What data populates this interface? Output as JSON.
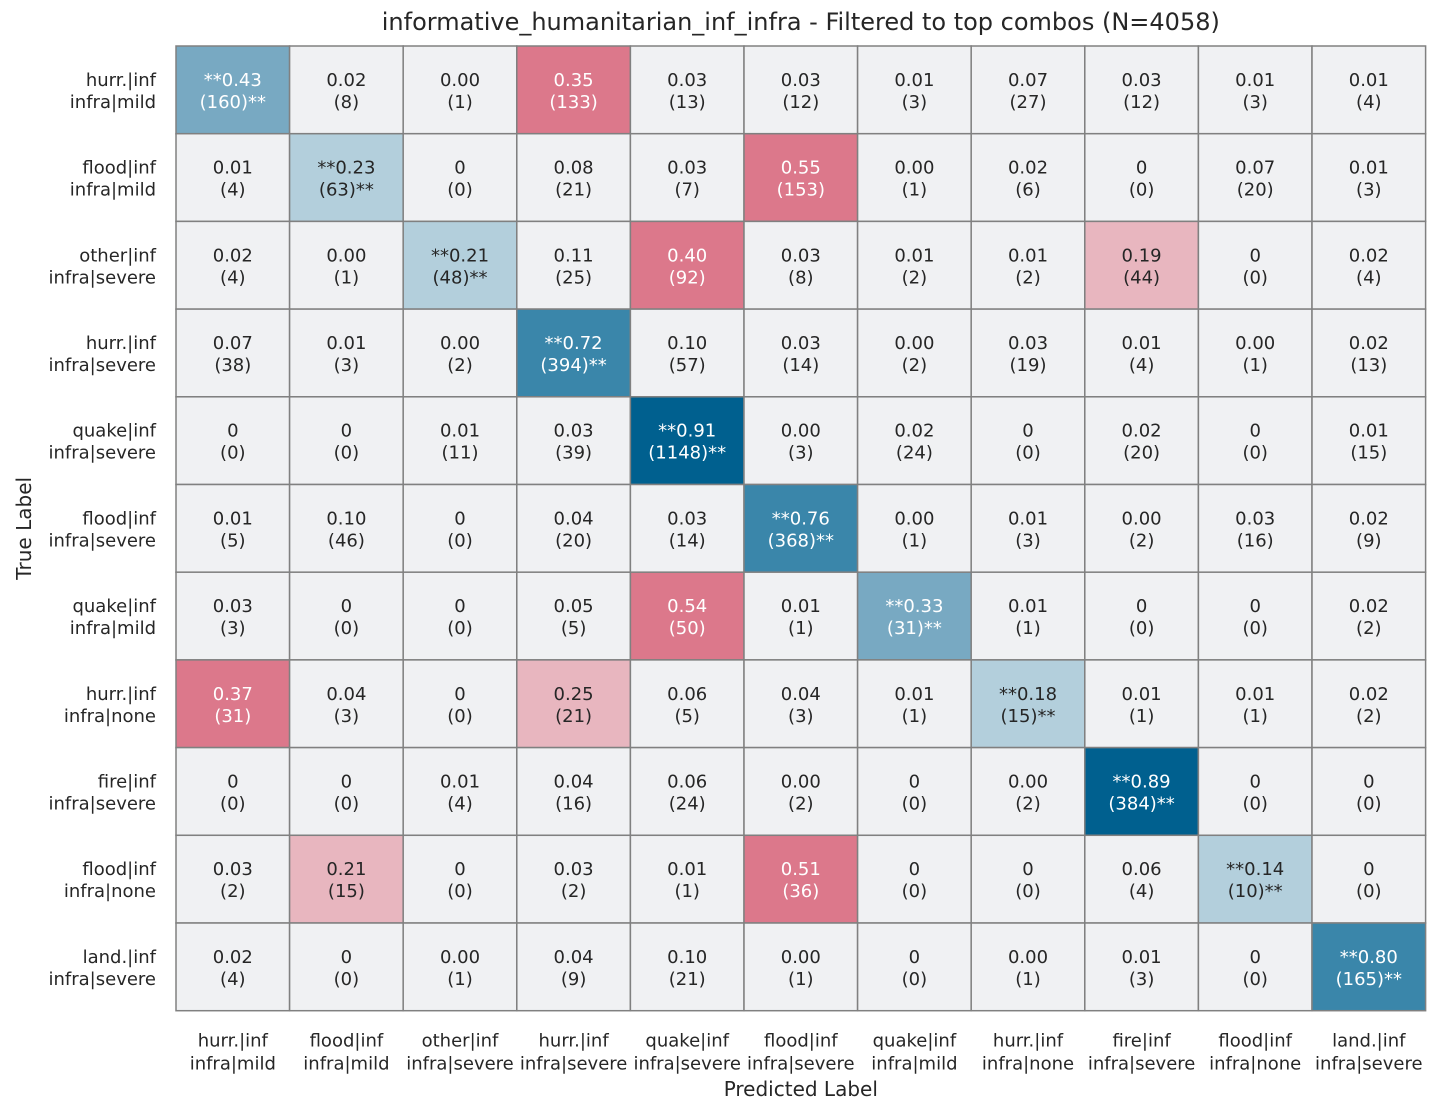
{
  "chart_data": {
    "type": "heatmap",
    "title": "informative_humanitarian_inf_infra - Filtered to top combos (N=4058)",
    "xlabel": "Predicted Label",
    "ylabel": "True Label",
    "row_labels": [
      [
        "hurr.|inf",
        "infra|mild"
      ],
      [
        "flood|inf",
        "infra|mild"
      ],
      [
        "other|inf",
        "infra|severe"
      ],
      [
        "hurr.|inf",
        "infra|severe"
      ],
      [
        "quake|inf",
        "infra|severe"
      ],
      [
        "flood|inf",
        "infra|severe"
      ],
      [
        "quake|inf",
        "infra|mild"
      ],
      [
        "hurr.|inf",
        "infra|none"
      ],
      [
        "fire|inf",
        "infra|severe"
      ],
      [
        "flood|inf",
        "infra|none"
      ],
      [
        "land.|inf",
        "infra|severe"
      ]
    ],
    "col_labels": [
      [
        "hurr.|inf",
        "infra|mild"
      ],
      [
        "flood|inf",
        "infra|mild"
      ],
      [
        "other|inf",
        "infra|severe"
      ],
      [
        "hurr.|inf",
        "infra|severe"
      ],
      [
        "quake|inf",
        "infra|severe"
      ],
      [
        "flood|inf",
        "infra|severe"
      ],
      [
        "quake|inf",
        "infra|mild"
      ],
      [
        "hurr.|inf",
        "infra|none"
      ],
      [
        "fire|inf",
        "infra|severe"
      ],
      [
        "flood|inf",
        "infra|none"
      ],
      [
        "land.|inf",
        "infra|severe"
      ]
    ],
    "cells": [
      [
        [
          "**0.43",
          "(160)**"
        ],
        [
          "0.02",
          "(8)"
        ],
        [
          "0.00",
          "(1)"
        ],
        [
          "0.35",
          "(133)"
        ],
        [
          "0.03",
          "(13)"
        ],
        [
          "0.03",
          "(12)"
        ],
        [
          "0.01",
          "(3)"
        ],
        [
          "0.07",
          "(27)"
        ],
        [
          "0.03",
          "(12)"
        ],
        [
          "0.01",
          "(3)"
        ],
        [
          "0.01",
          "(4)"
        ]
      ],
      [
        [
          "0.01",
          "(4)"
        ],
        [
          "**0.23",
          "(63)**"
        ],
        [
          "0",
          "(0)"
        ],
        [
          "0.08",
          "(21)"
        ],
        [
          "0.03",
          "(7)"
        ],
        [
          "0.55",
          "(153)"
        ],
        [
          "0.00",
          "(1)"
        ],
        [
          "0.02",
          "(6)"
        ],
        [
          "0",
          "(0)"
        ],
        [
          "0.07",
          "(20)"
        ],
        [
          "0.01",
          "(3)"
        ]
      ],
      [
        [
          "0.02",
          "(4)"
        ],
        [
          "0.00",
          "(1)"
        ],
        [
          "**0.21",
          "(48)**"
        ],
        [
          "0.11",
          "(25)"
        ],
        [
          "0.40",
          "(92)"
        ],
        [
          "0.03",
          "(8)"
        ],
        [
          "0.01",
          "(2)"
        ],
        [
          "0.01",
          "(2)"
        ],
        [
          "0.19",
          "(44)"
        ],
        [
          "0",
          "(0)"
        ],
        [
          "0.02",
          "(4)"
        ]
      ],
      [
        [
          "0.07",
          "(38)"
        ],
        [
          "0.01",
          "(3)"
        ],
        [
          "0.00",
          "(2)"
        ],
        [
          "**0.72",
          "(394)**"
        ],
        [
          "0.10",
          "(57)"
        ],
        [
          "0.03",
          "(14)"
        ],
        [
          "0.00",
          "(2)"
        ],
        [
          "0.03",
          "(19)"
        ],
        [
          "0.01",
          "(4)"
        ],
        [
          "0.00",
          "(1)"
        ],
        [
          "0.02",
          "(13)"
        ]
      ],
      [
        [
          "0",
          "(0)"
        ],
        [
          "0",
          "(0)"
        ],
        [
          "0.01",
          "(11)"
        ],
        [
          "0.03",
          "(39)"
        ],
        [
          "**0.91",
          "(1148)**"
        ],
        [
          "0.00",
          "(3)"
        ],
        [
          "0.02",
          "(24)"
        ],
        [
          "0",
          "(0)"
        ],
        [
          "0.02",
          "(20)"
        ],
        [
          "0",
          "(0)"
        ],
        [
          "0.01",
          "(15)"
        ]
      ],
      [
        [
          "0.01",
          "(5)"
        ],
        [
          "0.10",
          "(46)"
        ],
        [
          "0",
          "(0)"
        ],
        [
          "0.04",
          "(20)"
        ],
        [
          "0.03",
          "(14)"
        ],
        [
          "**0.76",
          "(368)**"
        ],
        [
          "0.00",
          "(1)"
        ],
        [
          "0.01",
          "(3)"
        ],
        [
          "0.00",
          "(2)"
        ],
        [
          "0.03",
          "(16)"
        ],
        [
          "0.02",
          "(9)"
        ]
      ],
      [
        [
          "0.03",
          "(3)"
        ],
        [
          "0",
          "(0)"
        ],
        [
          "0",
          "(0)"
        ],
        [
          "0.05",
          "(5)"
        ],
        [
          "0.54",
          "(50)"
        ],
        [
          "0.01",
          "(1)"
        ],
        [
          "**0.33",
          "(31)**"
        ],
        [
          "0.01",
          "(1)"
        ],
        [
          "0",
          "(0)"
        ],
        [
          "0",
          "(0)"
        ],
        [
          "0.02",
          "(2)"
        ]
      ],
      [
        [
          "0.37",
          "(31)"
        ],
        [
          "0.04",
          "(3)"
        ],
        [
          "0",
          "(0)"
        ],
        [
          "0.25",
          "(21)"
        ],
        [
          "0.06",
          "(5)"
        ],
        [
          "0.04",
          "(3)"
        ],
        [
          "0.01",
          "(1)"
        ],
        [
          "**0.18",
          "(15)**"
        ],
        [
          "0.01",
          "(1)"
        ],
        [
          "0.01",
          "(1)"
        ],
        [
          "0.02",
          "(2)"
        ]
      ],
      [
        [
          "0",
          "(0)"
        ],
        [
          "0",
          "(0)"
        ],
        [
          "0.01",
          "(4)"
        ],
        [
          "0.04",
          "(16)"
        ],
        [
          "0.06",
          "(24)"
        ],
        [
          "0.00",
          "(2)"
        ],
        [
          "0",
          "(0)"
        ],
        [
          "0.00",
          "(2)"
        ],
        [
          "**0.89",
          "(384)**"
        ],
        [
          "0",
          "(0)"
        ],
        [
          "0",
          "(0)"
        ]
      ],
      [
        [
          "0.03",
          "(2)"
        ],
        [
          "0.21",
          "(15)"
        ],
        [
          "0",
          "(0)"
        ],
        [
          "0.03",
          "(2)"
        ],
        [
          "0.01",
          "(1)"
        ],
        [
          "0.51",
          "(36)"
        ],
        [
          "0",
          "(0)"
        ],
        [
          "0",
          "(0)"
        ],
        [
          "0.06",
          "(4)"
        ],
        [
          "**0.14",
          "(10)**"
        ],
        [
          "0",
          "(0)"
        ]
      ],
      [
        [
          "0.02",
          "(4)"
        ],
        [
          "0",
          "(0)"
        ],
        [
          "0.00",
          "(1)"
        ],
        [
          "0.04",
          "(9)"
        ],
        [
          "0.10",
          "(21)"
        ],
        [
          "0.00",
          "(1)"
        ],
        [
          "0",
          "(0)"
        ],
        [
          "0.00",
          "(1)"
        ],
        [
          "0.01",
          "(3)"
        ],
        [
          "0",
          "(0)"
        ],
        [
          "**0.80",
          "(165)**"
        ]
      ]
    ],
    "colors": {
      "neutral": "#f0f1f3",
      "grid": "#808080",
      "diag_light": "#b3cfdc",
      "diag_mid": "#78a9c2",
      "diag_strong": "#3a86aa",
      "diag_darkest": "#00608f",
      "err_light": "#e8b6bf",
      "err_strong": "#dc788b",
      "text_dark": "#262626",
      "text_light": "#ffffff"
    }
  }
}
